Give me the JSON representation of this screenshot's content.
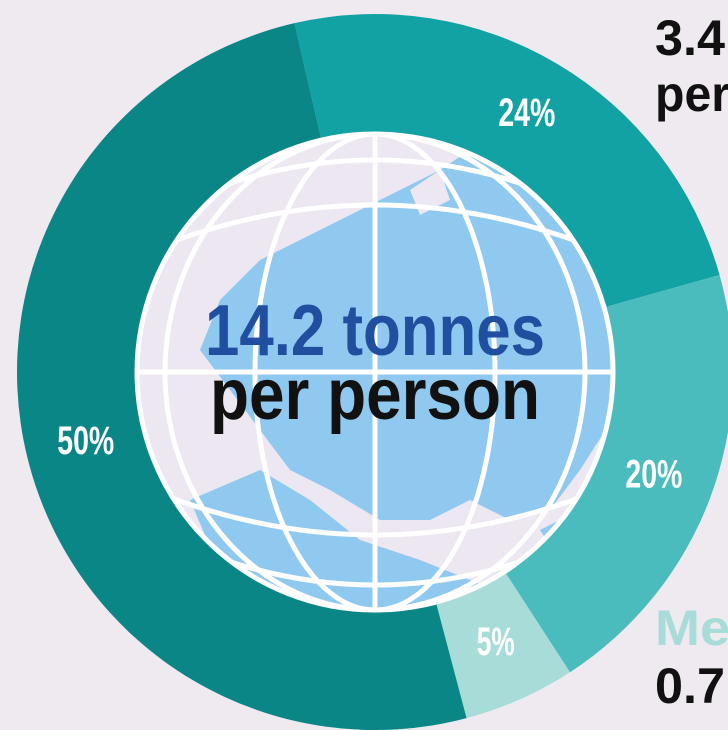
{
  "chart_data": {
    "type": "donut",
    "values": [
      24,
      20,
      5,
      50
    ],
    "value_labels": [
      "24%",
      "20%",
      "5%",
      "50%"
    ],
    "colors": [
      "#12a2a3",
      "#4bbcbd",
      "#a8dcd8",
      "#0b8686"
    ],
    "center_label": [
      "14.2 tonnes",
      "per person"
    ],
    "annotations": [
      "3.4",
      "per",
      "Me",
      "0.7"
    ]
  }
}
